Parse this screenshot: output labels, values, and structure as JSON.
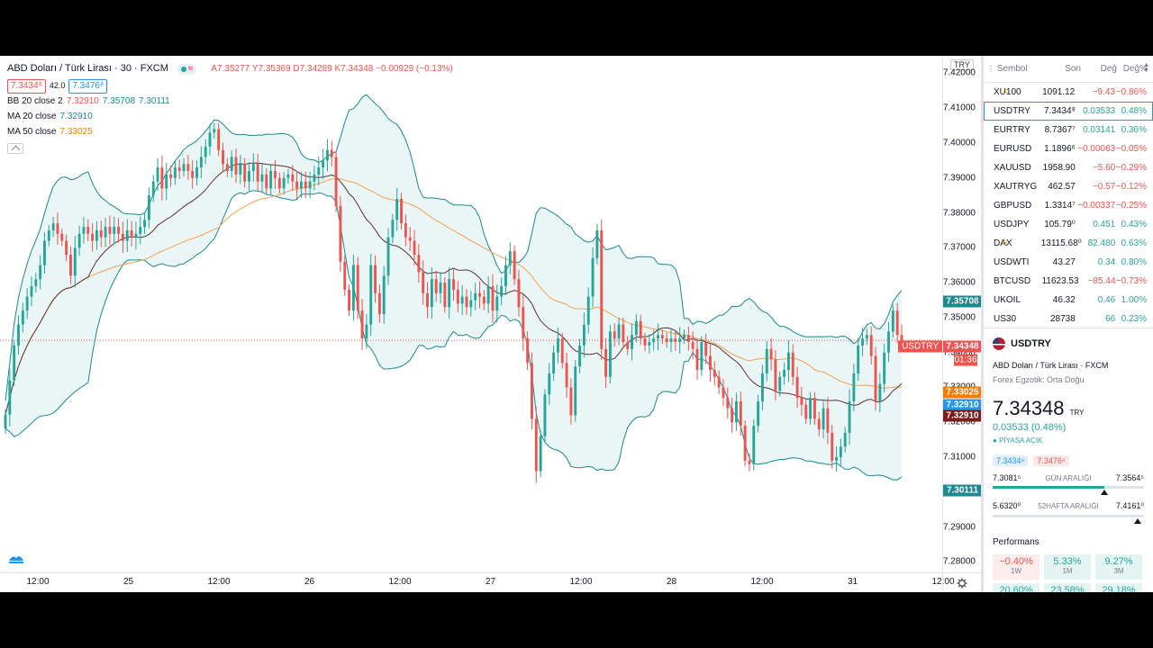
{
  "header": {
    "symbol_title": "ABD Doları / Türk Lirası · 30 · FXCM",
    "ohlc": "A7.35277 Y7.35369 D7.34289 K7.34348 −0.00929 (−0.13%)",
    "bid": "7.3434⁸",
    "spread": "42.0",
    "ask": "7.3476⁸",
    "bb_label": "BB 20 close 2",
    "bb_values": [
      "7.32910",
      "7.35708",
      "7.30111"
    ],
    "ma20_label": "MA 20 close",
    "ma20_value": "7.32910",
    "ma50_label": "MA 50 close",
    "ma50_value": "7.33025"
  },
  "axis": {
    "currency_button": "TRY",
    "symbol_flag": "USDTRY",
    "last_price_label": "7.34348",
    "countdown": "01:36",
    "labels": {
      "bb_upper": "7.35708",
      "ma50": "7.33025",
      "ma20": "7.32910",
      "bb_basis": "7.32910",
      "bb_lower": "7.30111"
    },
    "settings_icon": "gear-icon"
  },
  "colors": {
    "up": "#26a69a",
    "down": "#ef5350",
    "bb": "#1a8a8f",
    "bb_fill": "#e6f5f4",
    "ma20": "#5d3030",
    "ma50": "#f5a050",
    "accent": "#2196f3"
  },
  "chart_data": {
    "type": "candlestick",
    "title": "ABD Doları / Türk Lirası · 30 · FXCM",
    "ylim": [
      7.277,
      7.425
    ],
    "y_ticks": [
      "7.42000",
      "7.41000",
      "7.40000",
      "7.39000",
      "7.38000",
      "7.37000",
      "7.36000",
      "7.35000",
      "7.34000",
      "7.33000",
      "7.32000",
      "7.31000",
      "7.30000",
      "7.29000",
      "7.28000"
    ],
    "x_ticks": [
      "12:00",
      "25",
      "12:00",
      "26",
      "12:00",
      "27",
      "12:00",
      "28",
      "12:00",
      "31",
      "12:00"
    ],
    "last_close": 7.34348,
    "close": [
      7.3222,
      7.332,
      7.342,
      7.348,
      7.352,
      7.356,
      7.359,
      7.361,
      7.365,
      7.372,
      7.375,
      7.377,
      7.374,
      7.372,
      7.368,
      7.362,
      7.37,
      7.374,
      7.376,
      7.374,
      7.372,
      7.375,
      7.373,
      7.376,
      7.374,
      7.376,
      7.374,
      7.372,
      7.375,
      7.373,
      7.374,
      7.376,
      7.378,
      7.385,
      7.389,
      7.393,
      7.387,
      7.391,
      7.39,
      7.393,
      7.392,
      7.394,
      7.392,
      7.39,
      7.393,
      7.396,
      7.399,
      7.403,
      7.404,
      7.398,
      7.394,
      7.392,
      7.396,
      7.391,
      7.394,
      7.389,
      7.392,
      7.394,
      7.389,
      7.391,
      7.387,
      7.392,
      7.39,
      7.387,
      7.39,
      7.391,
      7.389,
      7.387,
      7.389,
      7.387,
      7.389,
      7.391,
      7.393,
      7.395,
      7.398,
      7.396,
      7.382,
      7.366,
      7.358,
      7.352,
      7.365,
      7.352,
      7.344,
      7.348,
      7.365,
      7.357,
      7.351,
      7.362,
      7.373,
      7.378,
      7.384,
      7.377,
      7.373,
      7.372,
      7.368,
      7.363,
      7.357,
      7.353,
      7.361,
      7.357,
      7.36,
      7.353,
      7.361,
      7.358,
      7.354,
      7.356,
      7.353,
      7.355,
      7.357,
      7.356,
      7.354,
      7.359,
      7.352,
      7.356,
      7.359,
      7.365,
      7.369,
      7.361,
      7.353,
      7.344,
      7.337,
      7.321,
      7.306,
      7.316,
      7.328,
      7.334,
      7.34,
      7.344,
      7.337,
      7.33,
      7.322,
      7.336,
      7.342,
      7.348,
      7.356,
      7.367,
      7.375,
      7.341,
      7.333,
      7.346,
      7.344,
      7.348,
      7.343,
      7.341,
      7.345,
      7.349,
      7.344,
      7.342,
      7.343,
      7.344,
      7.345,
      7.344,
      7.343,
      7.344,
      7.343,
      7.344,
      7.345,
      7.343,
      7.341,
      7.335,
      7.343,
      7.339,
      7.335,
      7.333,
      7.33,
      7.327,
      7.324,
      7.32,
      7.326,
      7.319,
      7.309,
      7.308,
      7.319,
      7.326,
      7.334,
      7.341,
      7.338,
      7.329,
      7.333,
      7.335,
      7.34,
      7.333,
      7.327,
      7.325,
      7.321,
      7.327,
      7.321,
      7.318,
      7.324,
      7.317,
      7.309,
      7.31,
      7.313,
      7.317,
      7.326,
      7.334,
      7.342,
      7.344,
      7.345,
      7.339,
      7.326,
      7.331,
      7.34,
      7.346,
      7.352,
      7.345,
      7.3435
    ]
  }
}
